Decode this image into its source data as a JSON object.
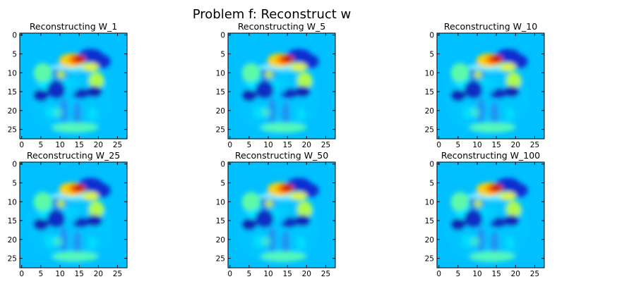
{
  "suptitle": "Problem f: Reconstruct w",
  "chart_data": [
    {
      "type": "heatmap",
      "title": "Reconstructing W_1",
      "colormap": "jet",
      "xlim": [
        -0.5,
        27.5
      ],
      "ylim": [
        27.5,
        -0.5
      ],
      "xticks": [
        0,
        5,
        10,
        15,
        20,
        25
      ],
      "yticks": [
        0,
        5,
        10,
        15,
        20,
        25
      ],
      "grid": false
    },
    {
      "type": "heatmap",
      "title": "Reconstructing W_5",
      "colormap": "jet",
      "xlim": [
        -0.5,
        27.5
      ],
      "ylim": [
        27.5,
        -0.5
      ],
      "xticks": [
        0,
        5,
        10,
        15,
        20,
        25
      ],
      "yticks": [
        0,
        5,
        10,
        15,
        20,
        25
      ],
      "grid": false
    },
    {
      "type": "heatmap",
      "title": "Reconstructing W_10",
      "colormap": "jet",
      "xlim": [
        -0.5,
        27.5
      ],
      "ylim": [
        27.5,
        -0.5
      ],
      "xticks": [
        0,
        5,
        10,
        15,
        20,
        25
      ],
      "yticks": [
        0,
        5,
        10,
        15,
        20,
        25
      ],
      "grid": false
    },
    {
      "type": "heatmap",
      "title": "Reconstructing W_25",
      "colormap": "jet",
      "xlim": [
        -0.5,
        27.5
      ],
      "ylim": [
        27.5,
        -0.5
      ],
      "xticks": [
        0,
        5,
        10,
        15,
        20,
        25
      ],
      "yticks": [
        0,
        5,
        10,
        15,
        20,
        25
      ],
      "grid": false
    },
    {
      "type": "heatmap",
      "title": "Reconstructing W_50",
      "colormap": "jet",
      "xlim": [
        -0.5,
        27.5
      ],
      "ylim": [
        27.5,
        -0.5
      ],
      "xticks": [
        0,
        5,
        10,
        15,
        20,
        25
      ],
      "yticks": [
        0,
        5,
        10,
        15,
        20,
        25
      ],
      "grid": false
    },
    {
      "type": "heatmap",
      "title": "Reconstructing W_100",
      "colormap": "jet",
      "xlim": [
        -0.5,
        27.5
      ],
      "ylim": [
        27.5,
        -0.5
      ],
      "xticks": [
        0,
        5,
        10,
        15,
        20,
        25
      ],
      "yticks": [
        0,
        5,
        10,
        15,
        20,
        25
      ],
      "grid": false
    }
  ]
}
